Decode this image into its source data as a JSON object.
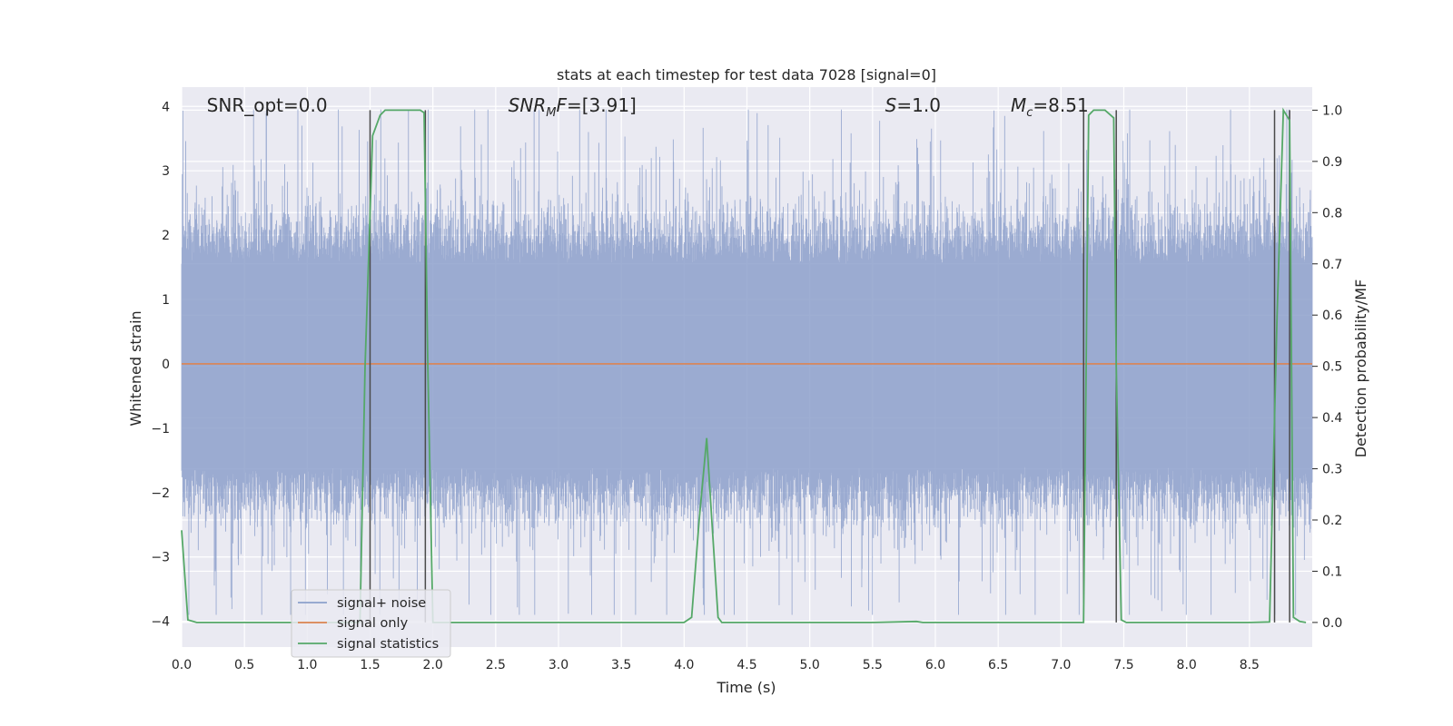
{
  "chart_data": {
    "type": "line",
    "title": "stats at each timestep for test data 7028 [signal=0]",
    "xlabel": "Time (s)",
    "ylabel": "Whitened strain",
    "ylabel_right": "Detection probability/MF",
    "xlim": [
      0,
      9.0
    ],
    "ylim": [
      -4.4,
      4.3
    ],
    "ylim_right": [
      -0.048,
      1.045
    ],
    "x_ticks": [
      "0.0",
      "0.5",
      "1.0",
      "1.5",
      "2.0",
      "2.5",
      "3.0",
      "3.5",
      "4.0",
      "4.5",
      "5.0",
      "5.5",
      "6.0",
      "6.5",
      "7.0",
      "7.5",
      "8.0",
      "8.5"
    ],
    "x_tick_values": [
      0,
      0.5,
      1,
      1.5,
      2,
      2.5,
      3,
      3.5,
      4,
      4.5,
      5,
      5.5,
      6,
      6.5,
      7,
      7.5,
      8,
      8.5
    ],
    "y_ticks": [
      "4",
      "3",
      "2",
      "1",
      "0",
      "−1",
      "−2",
      "−3",
      "−4"
    ],
    "y_tick_values": [
      4,
      3,
      2,
      1,
      0,
      -1,
      -2,
      -3,
      -4
    ],
    "y_ticks_right": [
      "1.0",
      "0.9",
      "0.8",
      "0.7",
      "0.6",
      "0.5",
      "0.4",
      "0.3",
      "0.2",
      "0.1",
      "0.0"
    ],
    "y_tick_values_right": [
      1.0,
      0.9,
      0.8,
      0.7,
      0.6,
      0.5,
      0.4,
      0.3,
      0.2,
      0.1,
      0.0
    ],
    "grid": true,
    "legend_position": "lower-left",
    "colors": {
      "background": "#eaeaf2",
      "grid": "#ffffff",
      "noise": "#8da0cb",
      "signal": "#dd8452",
      "stats": "#55a868",
      "vline": "#4a4a4a"
    },
    "annotations": [
      {
        "label": "SNR_opt=0.0",
        "x": 0.2
      },
      {
        "label": "SNR",
        "sub": "M",
        "tail": "F=[3.91]",
        "italic": true,
        "x": 2.6
      },
      {
        "label": "S",
        "tail": "=1.0",
        "italic": true,
        "x": 5.6
      },
      {
        "label": "M",
        "sub": "c",
        "tail": "=8.51",
        "italic": true,
        "x": 6.6
      }
    ],
    "series": [
      {
        "name": "signal+ noise",
        "kind": "noise",
        "amp_range": [
          -3.9,
          3.95
        ],
        "typical_band": [
          -1.6,
          1.55
        ]
      },
      {
        "name": "signal only",
        "kind": "constant",
        "value": 0.0
      },
      {
        "name": "signal statistics",
        "kind": "line",
        "x": [
          0.0,
          0.05,
          0.12,
          0.5,
          1.0,
          1.42,
          1.46,
          1.52,
          1.58,
          1.62,
          1.7,
          1.9,
          1.93,
          1.96,
          2.0,
          2.5,
          3.0,
          3.5,
          4.0,
          4.06,
          4.12,
          4.18,
          4.22,
          4.27,
          4.3,
          5.0,
          5.5,
          5.85,
          5.9,
          6.5,
          7.0,
          7.18,
          7.22,
          7.26,
          7.35,
          7.42,
          7.44,
          7.48,
          7.52,
          7.6,
          8.0,
          8.5,
          8.66,
          8.72,
          8.77,
          8.82,
          8.85,
          8.9,
          8.95
        ],
        "y": [
          0.18,
          0.005,
          0.0,
          0.0,
          0.0,
          0.0,
          0.5,
          0.95,
          0.99,
          1.0,
          1.0,
          1.0,
          0.995,
          0.5,
          0.0,
          0.0,
          0.0,
          0.0,
          0.0,
          0.01,
          0.2,
          0.36,
          0.2,
          0.01,
          0.0,
          0.0,
          0.0,
          0.002,
          0.0,
          0.0,
          0.0,
          0.0,
          0.99,
          1.0,
          1.0,
          0.985,
          0.5,
          0.005,
          0.0,
          0.0,
          0.0,
          0.0,
          0.001,
          0.6,
          1.0,
          0.98,
          0.01,
          0.002,
          0.0
        ]
      }
    ],
    "vlines": [
      1.5,
      1.94,
      7.18,
      7.44,
      8.7,
      8.82
    ]
  }
}
